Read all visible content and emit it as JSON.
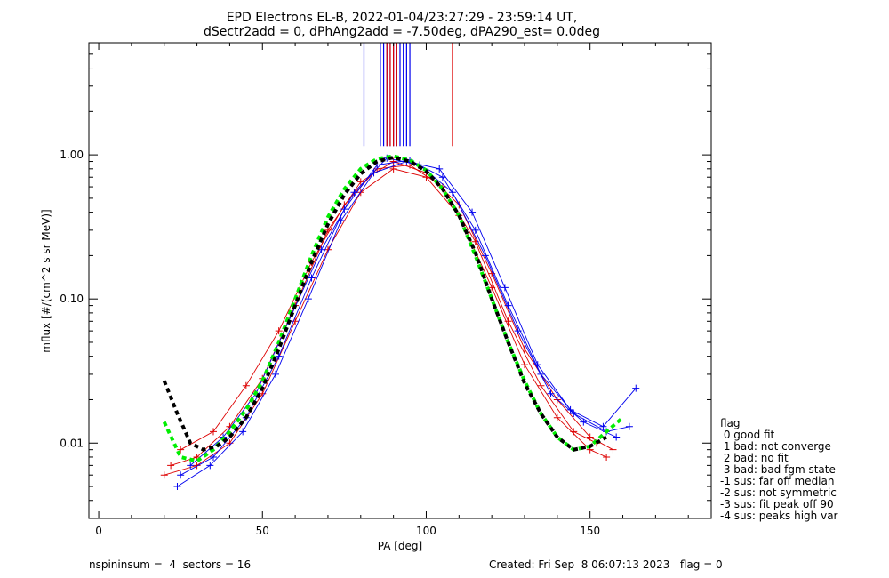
{
  "chart_data": {
    "type": "line",
    "title": "EPD Electrons EL-B, 2022-01-04/23:27:29 - 23:59:14 UT,",
    "subtitle": "dSectr2add = 0, dPhAng2add = -7.50deg, dPA290_est=   0.0deg",
    "xlabel": "PA [deg]",
    "ylabel": "mflux [#/(cm^2 s sr MeV)]",
    "xlim": [
      -3,
      187
    ],
    "ylim": [
      0.003,
      6.0
    ],
    "yscale": "log",
    "x_ticks": [
      0,
      50,
      100,
      150
    ],
    "x_tick_labels": [
      "0",
      "50",
      "100",
      "150"
    ],
    "y_ticks": [
      0.01,
      0.1,
      1.0
    ],
    "y_tick_labels": [
      "0.01",
      "0.10",
      "1.00"
    ],
    "grid": false,
    "colors": {
      "red_series": "#dd0000",
      "blue_series": "#0000ee",
      "median_fit": "#00ee00",
      "black_fit": "#000000"
    },
    "series": [
      {
        "color": "#dd0000",
        "style": "solid-with-plus-markers",
        "x": [
          22,
          30,
          40,
          50,
          60,
          70,
          80,
          90,
          100,
          110,
          120,
          130,
          140,
          150,
          157
        ],
        "y": [
          0.007,
          0.008,
          0.013,
          0.028,
          0.09,
          0.3,
          0.65,
          0.9,
          0.75,
          0.45,
          0.15,
          0.045,
          0.02,
          0.011,
          0.009
        ]
      },
      {
        "color": "#dd0000",
        "style": "solid-with-plus-markers",
        "x": [
          20,
          30,
          40,
          50,
          60,
          70,
          80,
          90,
          100,
          110,
          120,
          130,
          140,
          150,
          155
        ],
        "y": [
          0.006,
          0.007,
          0.01,
          0.022,
          0.07,
          0.22,
          0.55,
          0.8,
          0.7,
          0.38,
          0.12,
          0.035,
          0.015,
          0.009,
          0.008
        ]
      },
      {
        "color": "#dd0000",
        "style": "solid-with-plus-markers",
        "x": [
          25,
          35,
          45,
          55,
          65,
          75,
          85,
          95,
          105,
          115,
          125,
          135,
          145,
          152
        ],
        "y": [
          0.009,
          0.012,
          0.025,
          0.06,
          0.18,
          0.45,
          0.8,
          0.85,
          0.6,
          0.25,
          0.07,
          0.025,
          0.012,
          0.01
        ]
      },
      {
        "color": "#0000ee",
        "style": "solid-with-plus-markers",
        "x": [
          25,
          35,
          45,
          55,
          65,
          75,
          85,
          95,
          105,
          115,
          125,
          135,
          145,
          155,
          162
        ],
        "y": [
          0.006,
          0.008,
          0.015,
          0.04,
          0.14,
          0.42,
          0.85,
          0.92,
          0.7,
          0.3,
          0.09,
          0.03,
          0.016,
          0.012,
          0.013
        ]
      },
      {
        "color": "#0000ee",
        "style": "solid-with-plus-markers",
        "x": [
          28,
          38,
          48,
          58,
          68,
          78,
          88,
          98,
          108,
          118,
          128,
          138,
          148,
          158
        ],
        "y": [
          0.007,
          0.011,
          0.022,
          0.07,
          0.22,
          0.55,
          0.95,
          0.85,
          0.55,
          0.2,
          0.06,
          0.022,
          0.014,
          0.011
        ]
      },
      {
        "color": "#0000ee",
        "style": "solid-with-plus-markers",
        "x": [
          24,
          34,
          44,
          54,
          64,
          74,
          84,
          94,
          104,
          114,
          124,
          134,
          144,
          154,
          164
        ],
        "y": [
          0.005,
          0.007,
          0.012,
          0.03,
          0.1,
          0.35,
          0.75,
          0.9,
          0.8,
          0.4,
          0.12,
          0.035,
          0.017,
          0.013,
          0.024
        ]
      },
      {
        "name": "",
        "color": "#00ee00",
        "style": "dashed-thick",
        "x": [
          20,
          25,
          30,
          35,
          40,
          45,
          50,
          55,
          60,
          65,
          70,
          75,
          80,
          85,
          90,
          95,
          100,
          105,
          110,
          115,
          120,
          125,
          130,
          135,
          140,
          145,
          150,
          155,
          160
        ],
        "y": [
          0.014,
          0.008,
          0.0075,
          0.009,
          0.012,
          0.017,
          0.027,
          0.05,
          0.1,
          0.2,
          0.37,
          0.58,
          0.8,
          0.94,
          0.98,
          0.92,
          0.78,
          0.58,
          0.38,
          0.2,
          0.1,
          0.05,
          0.027,
          0.016,
          0.011,
          0.009,
          0.0095,
          0.012,
          0.015
        ]
      },
      {
        "name": "",
        "color": "#000000",
        "style": "dashed-thick",
        "x": [
          20,
          24,
          28,
          32,
          36,
          40,
          45,
          50,
          55,
          60,
          65,
          70,
          75,
          80,
          85,
          90,
          95,
          100,
          105,
          110,
          115,
          120,
          125,
          130,
          135,
          140,
          145,
          150,
          155
        ],
        "y": [
          0.027,
          0.016,
          0.01,
          0.009,
          0.0095,
          0.011,
          0.015,
          0.024,
          0.045,
          0.09,
          0.18,
          0.33,
          0.53,
          0.74,
          0.9,
          0.96,
          0.9,
          0.77,
          0.58,
          0.38,
          0.21,
          0.1,
          0.05,
          0.026,
          0.016,
          0.011,
          0.009,
          0.0095,
          0.011
        ]
      }
    ],
    "peak_markers": {
      "note_hidden": true,
      "red_x": [
        88,
        89,
        90,
        91,
        108
      ],
      "blue_x": [
        81,
        86,
        87,
        88,
        89,
        90,
        91,
        92,
        93,
        94,
        95
      ],
      "y_top": 6.0,
      "y_bottom": 1.15
    },
    "legend": {
      "placement": "right",
      "title": "flag",
      "entries": [
        " 0 good fit",
        " 1 bad: not converge",
        " 2 bad: no fit",
        " 3 bad: bad fgm state",
        "-1 sus: far off median",
        "-2 sus: not symmetric",
        "-3 sus: fit peak off 90",
        "-4 sus: peaks high var"
      ]
    }
  },
  "footer": {
    "left": "nspininsum =  4  sectors = 16",
    "right": "Created: Fri Sep  8 06:07:13 2023   flag = 0"
  }
}
